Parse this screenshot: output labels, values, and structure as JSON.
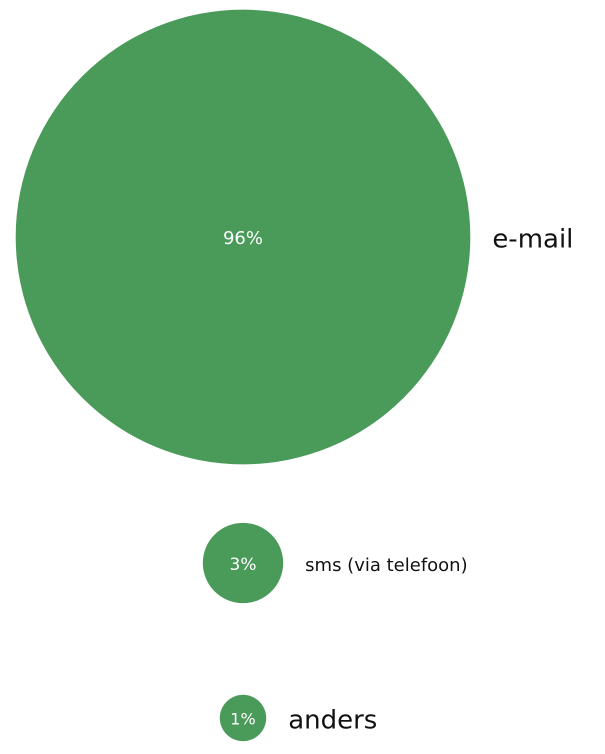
{
  "chart_data": {
    "type": "bubble",
    "categories": [
      "e-mail",
      "sms (via telefoon)",
      "anders"
    ],
    "values": [
      96,
      3,
      1
    ],
    "value_labels": [
      "96%",
      "3%",
      "1%"
    ],
    "color": "#4a9a5a"
  }
}
